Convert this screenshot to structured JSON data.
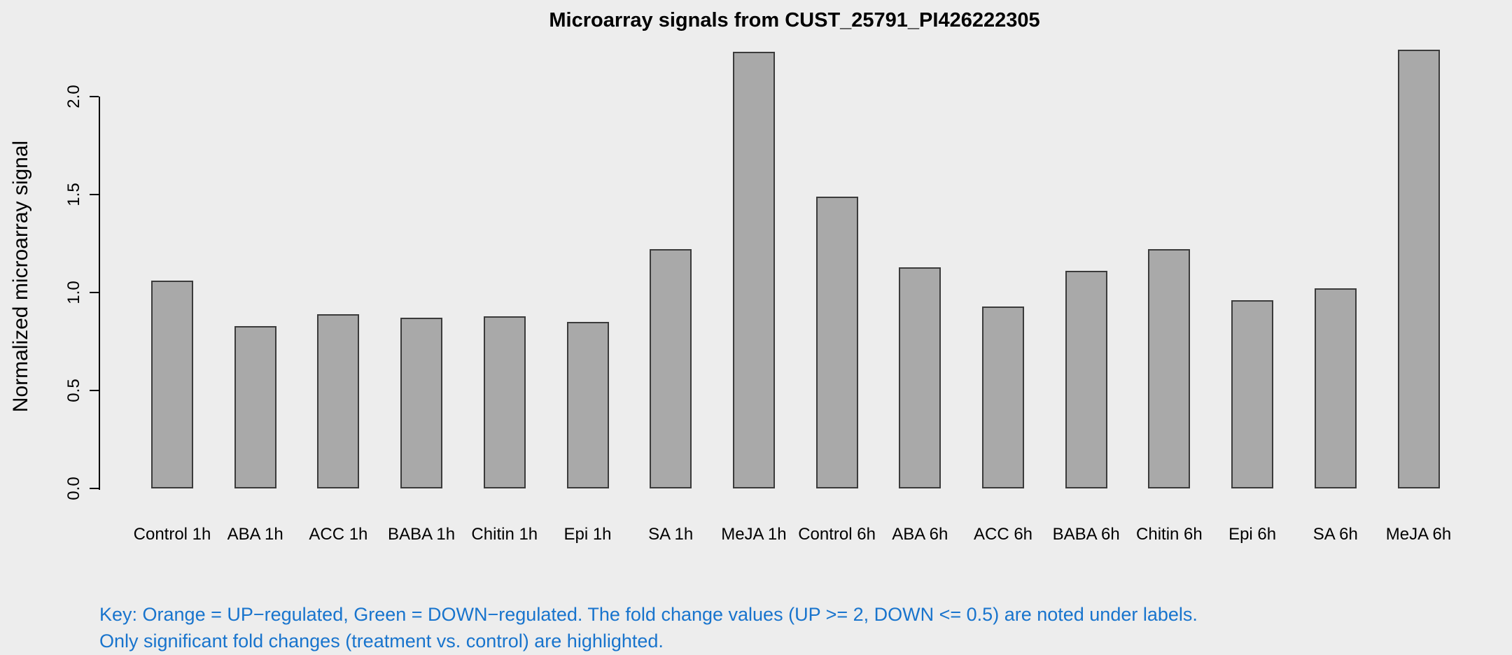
{
  "page": {
    "background": "#EDEDED"
  },
  "chart_data": {
    "type": "bar",
    "title": "Microarray signals from CUST_25791_PI426222305",
    "ylabel": "Normalized microarray signal",
    "xlabel": "",
    "categories": [
      "Control 1h",
      "ABA 1h",
      "ACC 1h",
      "BABA 1h",
      "Chitin 1h",
      "Epi 1h",
      "SA 1h",
      "MeJA 1h",
      "Control 6h",
      "ABA 6h",
      "ACC 6h",
      "BABA 6h",
      "Chitin 6h",
      "Epi 6h",
      "SA 6h",
      "MeJA 6h"
    ],
    "values": [
      1.06,
      0.83,
      0.89,
      0.87,
      0.88,
      0.85,
      1.22,
      2.23,
      1.49,
      1.13,
      0.93,
      1.11,
      1.22,
      0.96,
      1.02,
      2.24
    ],
    "ytick_labels": [
      "0.0",
      "0.5",
      "1.0",
      "1.5",
      "2.0"
    ],
    "ytick_values": [
      0,
      0.5,
      1,
      1.5,
      2
    ],
    "ylim": [
      0,
      2.25
    ],
    "grid": false,
    "legend": "none",
    "bar_fill": "#A9A9A9",
    "bar_border": "#3B3B3B",
    "axis_color": "#000000",
    "text_color": "#000000"
  },
  "footnote": {
    "line1": "Key: Orange = UP−regulated, Green = DOWN−regulated. The fold change values (UP >= 2, DOWN <= 0.5) are noted under labels.",
    "line2": "Only significant fold changes (treatment vs. control) are highlighted.",
    "color": "#1874CD"
  }
}
